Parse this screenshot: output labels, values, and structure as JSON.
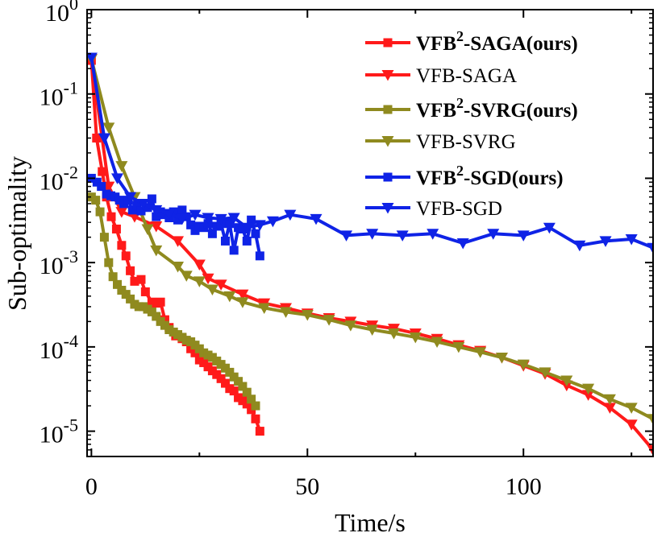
{
  "chart_data": {
    "type": "line",
    "xlabel": "Time/s",
    "ylabel": "Sub-optimality",
    "xlim": [
      -1,
      130
    ],
    "ylim_log10": [
      -5.3,
      0
    ],
    "y_scale": "log",
    "x_ticks": [
      {
        "value": 0,
        "label": "0"
      },
      {
        "value": 50,
        "label": "50"
      },
      {
        "value": 100,
        "label": "100"
      }
    ],
    "y_ticks": [
      {
        "exp": 0,
        "base": "10",
        "power": "0"
      },
      {
        "exp": -1,
        "base": "10",
        "power": "-1"
      },
      {
        "exp": -2,
        "base": "10",
        "power": "-2"
      },
      {
        "exp": -3,
        "base": "10",
        "power": "-3"
      },
      {
        "exp": -4,
        "base": "10",
        "power": "-4"
      },
      {
        "exp": -5,
        "base": "10",
        "power": "-5"
      }
    ],
    "legend_position": "top-right",
    "series": [
      {
        "name": "VFB²-SAGA(ours)",
        "legend_main": "VFB",
        "legend_sup": "2",
        "legend_rest": "-SAGA(ours)",
        "bold": true,
        "color": "#ff1a1a",
        "marker": "square",
        "points": [
          [
            0,
            0.25
          ],
          [
            1.2,
            0.03
          ],
          [
            2.5,
            0.012
          ],
          [
            3.5,
            0.006
          ],
          [
            4.6,
            0.0035
          ],
          [
            5.8,
            0.0025
          ],
          [
            7,
            0.0016
          ],
          [
            8,
            0.0012
          ],
          [
            9,
            0.0008
          ],
          [
            10,
            0.0006
          ],
          [
            11.5,
            0.00063
          ],
          [
            12.5,
            0.00045
          ],
          [
            14,
            0.00034
          ],
          [
            15,
            0.00033
          ],
          [
            16,
            0.00034
          ],
          [
            17,
            0.00021
          ],
          [
            18,
            0.00017
          ],
          [
            19.5,
            0.000135
          ],
          [
            21,
            0.000125
          ],
          [
            22,
            0.000115
          ],
          [
            23,
            9.5e-05
          ],
          [
            24,
            8.5e-05
          ],
          [
            25,
            7e-05
          ],
          [
            26,
            6.5e-05
          ],
          [
            27,
            5.8e-05
          ],
          [
            28,
            5.2e-05
          ],
          [
            29,
            4.7e-05
          ],
          [
            30,
            4.2e-05
          ],
          [
            31,
            3.7e-05
          ],
          [
            32,
            3.2e-05
          ],
          [
            33,
            3e-05
          ],
          [
            34,
            2.5e-05
          ],
          [
            35,
            2.3e-05
          ],
          [
            36,
            2.1e-05
          ],
          [
            37,
            1.8e-05
          ],
          [
            38,
            1.4e-05
          ],
          [
            39,
            1e-05
          ]
        ]
      },
      {
        "name": "VFB-SAGA",
        "legend_main": "VFB-SAGA",
        "legend_sup": "",
        "legend_rest": "",
        "bold": false,
        "color": "#ff1a1a",
        "marker": "triangle-down",
        "points": [
          [
            0,
            0.26
          ],
          [
            4,
            0.008
          ],
          [
            7,
            0.004
          ],
          [
            10,
            0.0035
          ],
          [
            15,
            0.0027
          ],
          [
            20,
            0.0018
          ],
          [
            25,
            0.00095
          ],
          [
            27,
            0.00065
          ],
          [
            30,
            0.00055
          ],
          [
            35,
            0.00042
          ],
          [
            40,
            0.00033
          ],
          [
            45,
            0.00029
          ],
          [
            50,
            0.00025
          ],
          [
            55,
            0.00022
          ],
          [
            60,
            0.0002
          ],
          [
            65,
            0.00018
          ],
          [
            70,
            0.000165
          ],
          [
            75,
            0.000145
          ],
          [
            80,
            0.000125
          ],
          [
            85,
            0.000105
          ],
          [
            90,
            9e-05
          ],
          [
            95,
            7.5e-05
          ],
          [
            100,
            6e-05
          ],
          [
            105,
            4.8e-05
          ],
          [
            110,
            3.5e-05
          ],
          [
            115,
            2.7e-05
          ],
          [
            120,
            1.9e-05
          ],
          [
            125,
            1.2e-05
          ],
          [
            130,
            6e-06
          ]
        ]
      },
      {
        "name": "VFB²-SVRG(ours)",
        "legend_main": "VFB",
        "legend_sup": "2",
        "legend_rest": "-SVRG(ours)",
        "bold": true,
        "color": "#8f8a1f",
        "marker": "square",
        "points": [
          [
            0,
            0.006
          ],
          [
            1,
            0.0055
          ],
          [
            2,
            0.004
          ],
          [
            3,
            0.002
          ],
          [
            4,
            0.001
          ],
          [
            5,
            0.00068
          ],
          [
            6,
            0.00055
          ],
          [
            7,
            0.00047
          ],
          [
            8,
            0.00042
          ],
          [
            9,
            0.00037
          ],
          [
            10,
            0.00032
          ],
          [
            11,
            0.0003
          ],
          [
            12,
            0.0003
          ],
          [
            13,
            0.00028
          ],
          [
            14,
            0.00026
          ],
          [
            15,
            0.00023
          ],
          [
            16,
            0.0002
          ],
          [
            17,
            0.00018
          ],
          [
            18,
            0.00016
          ],
          [
            19,
            0.00015
          ],
          [
            20,
            0.00014
          ],
          [
            21,
            0.00013
          ],
          [
            22,
            0.00012
          ],
          [
            23,
            0.000115
          ],
          [
            24,
            0.000105
          ],
          [
            25,
            9.5e-05
          ],
          [
            26,
            8.5e-05
          ],
          [
            27,
            8e-05
          ],
          [
            28,
            7.5e-05
          ],
          [
            29,
            6.8e-05
          ],
          [
            30,
            6.2e-05
          ],
          [
            31,
            5.6e-05
          ],
          [
            32,
            5e-05
          ],
          [
            33,
            4.4e-05
          ],
          [
            34,
            3.9e-05
          ],
          [
            35,
            3.4e-05
          ],
          [
            36,
            2.9e-05
          ],
          [
            37,
            2.4e-05
          ],
          [
            38,
            2e-05
          ]
        ]
      },
      {
        "name": "VFB-SVRG",
        "legend_main": "VFB-SVRG",
        "legend_sup": "",
        "legend_rest": "",
        "bold": false,
        "color": "#8f8a1f",
        "marker": "triangle-down",
        "points": [
          [
            0,
            0.26
          ],
          [
            4,
            0.04
          ],
          [
            7,
            0.014
          ],
          [
            10,
            0.006
          ],
          [
            13,
            0.0025
          ],
          [
            15,
            0.0014
          ],
          [
            20,
            0.0009
          ],
          [
            22,
            0.0007
          ],
          [
            25,
            0.0006
          ],
          [
            28,
            0.00048
          ],
          [
            32,
            0.0004
          ],
          [
            35,
            0.00034
          ],
          [
            40,
            0.00029
          ],
          [
            45,
            0.00026
          ],
          [
            50,
            0.00024
          ],
          [
            55,
            0.00021
          ],
          [
            60,
            0.00018
          ],
          [
            65,
            0.00016
          ],
          [
            70,
            0.000145
          ],
          [
            75,
            0.00013
          ],
          [
            80,
            0.000115
          ],
          [
            85,
            0.0001
          ],
          [
            90,
            8.7e-05
          ],
          [
            95,
            7.5e-05
          ],
          [
            100,
            6.2e-05
          ],
          [
            105,
            5e-05
          ],
          [
            110,
            4e-05
          ],
          [
            115,
            3.2e-05
          ],
          [
            120,
            2.4e-05
          ],
          [
            125,
            1.9e-05
          ],
          [
            130,
            1.4e-05
          ]
        ]
      },
      {
        "name": "VFB²-SGD(ours)",
        "legend_main": "VFB",
        "legend_sup": "2",
        "legend_rest": "-SGD(ours)",
        "bold": true,
        "color": "#0f23e6",
        "marker": "square",
        "points": [
          [
            0,
            0.01
          ],
          [
            1.3,
            0.009
          ],
          [
            2.3,
            0.008
          ],
          [
            3.5,
            0.0065
          ],
          [
            4.5,
            0.0062
          ],
          [
            5.5,
            0.006
          ],
          [
            6.5,
            0.0055
          ],
          [
            7.5,
            0.005
          ],
          [
            8.5,
            0.0055
          ],
          [
            9.5,
            0.0042
          ],
          [
            10.5,
            0.0048
          ],
          [
            11.5,
            0.0041
          ],
          [
            13,
            0.0045
          ],
          [
            14,
            0.0057
          ],
          [
            15,
            0.0035
          ],
          [
            16,
            0.004
          ],
          [
            17,
            0.0037
          ],
          [
            18,
            0.0034
          ],
          [
            19,
            0.004
          ],
          [
            20,
            0.0032
          ],
          [
            21,
            0.0042
          ],
          [
            22,
            0.0035
          ],
          [
            23,
            0.0028
          ],
          [
            24,
            0.0024
          ],
          [
            25,
            0.0027
          ],
          [
            26,
            0.0026
          ],
          [
            27,
            0.0029
          ],
          [
            28,
            0.0022
          ],
          [
            29,
            0.0027
          ],
          [
            30,
            0.0029
          ],
          [
            31,
            0.0018
          ],
          [
            32,
            0.0029
          ],
          [
            33,
            0.0014
          ],
          [
            34,
            0.0026
          ],
          [
            35,
            0.0025
          ],
          [
            36,
            0.0018
          ],
          [
            37,
            0.0032
          ],
          [
            38,
            0.0022
          ],
          [
            39,
            0.0012
          ]
        ]
      },
      {
        "name": "VFB-SGD",
        "legend_main": "VFB-SGD",
        "legend_sup": "",
        "legend_rest": "",
        "bold": false,
        "color": "#0f23e6",
        "marker": "triangle-down",
        "points": [
          [
            0,
            0.27
          ],
          [
            3,
            0.03
          ],
          [
            6,
            0.01
          ],
          [
            9,
            0.006
          ],
          [
            12,
            0.005
          ],
          [
            15,
            0.0042
          ],
          [
            18,
            0.0038
          ],
          [
            21,
            0.0033
          ],
          [
            24,
            0.0037
          ],
          [
            27,
            0.0034
          ],
          [
            30,
            0.0033
          ],
          [
            33,
            0.0034
          ],
          [
            36,
            0.0026
          ],
          [
            39,
            0.0028
          ],
          [
            42,
            0.0031
          ],
          [
            46,
            0.0037
          ],
          [
            52,
            0.0033
          ],
          [
            59,
            0.0021
          ],
          [
            65,
            0.0022
          ],
          [
            72,
            0.0021
          ],
          [
            79,
            0.0022
          ],
          [
            86,
            0.0017
          ],
          [
            93,
            0.0022
          ],
          [
            100,
            0.0021
          ],
          [
            106,
            0.0026
          ],
          [
            113,
            0.0016
          ],
          [
            119,
            0.0018
          ],
          [
            125,
            0.0019
          ],
          [
            130,
            0.0015
          ]
        ]
      }
    ]
  }
}
